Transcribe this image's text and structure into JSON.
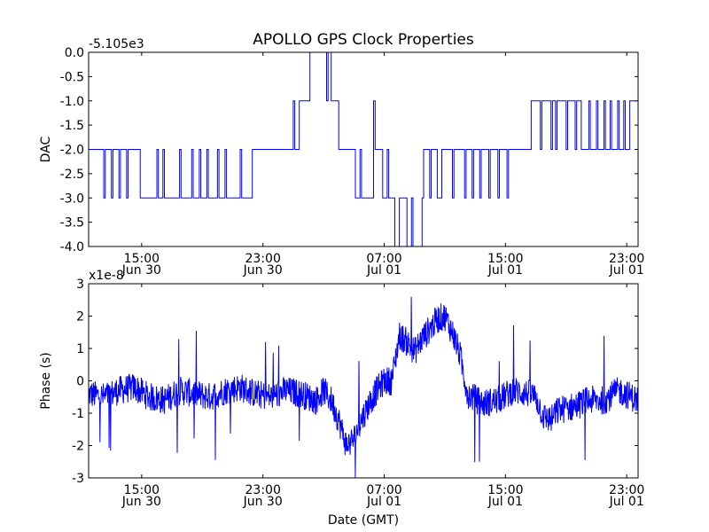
{
  "figure": {
    "title": "APOLLO GPS Clock Properties",
    "xlabel": "Date (GMT)"
  },
  "chart_data": [
    {
      "type": "line",
      "ylabel": "DAC",
      "offset_label": "-5.105e3",
      "ylim": [
        -4.0,
        0.0
      ],
      "yticks": [
        0.0,
        -0.5,
        -1.0,
        -1.5,
        -2.0,
        -2.5,
        -3.0,
        -3.5,
        -4.0
      ],
      "ytick_labels": [
        "0.0",
        "-0.5",
        "-1.0",
        "-1.5",
        "-2.0",
        "-2.5",
        "-3.0",
        "-3.5",
        "-4.0"
      ],
      "xlim_hours": [
        11.5,
        47.75
      ],
      "xticks": [
        {
          "hour": 15,
          "time": "15:00",
          "date": "Jun 30"
        },
        {
          "hour": 23,
          "time": "23:00",
          "date": "Jun 30"
        },
        {
          "hour": 31,
          "time": "07:00",
          "date": "Jul 01"
        },
        {
          "hour": 39,
          "time": "15:00",
          "date": "Jul 01"
        },
        {
          "hour": 47,
          "time": "23:00",
          "date": "Jul 01"
        }
      ],
      "series": [
        {
          "name": "DAC",
          "color": "#0000ff",
          "style": "step",
          "x": [
            11.5,
            12.5,
            12.6,
            13.0,
            13.1,
            13.5,
            13.6,
            14.0,
            14.1,
            14.8,
            14.9,
            16.0,
            16.1,
            16.4,
            16.5,
            17.5,
            17.6,
            18.3,
            18.4,
            18.8,
            18.9,
            19.3,
            19.4,
            20.0,
            20.1,
            20.5,
            20.6,
            21.5,
            21.6,
            22.3,
            22.4,
            25.0,
            25.1,
            25.3,
            25.4,
            26.0,
            26.1,
            27.2,
            27.3,
            27.5,
            27.6,
            27.9,
            28.0,
            28.1,
            28.2,
            29.0,
            29.1,
            29.4,
            29.5,
            30.3,
            30.4,
            30.8,
            30.9,
            31.2,
            31.3,
            31.6,
            31.7,
            32.0,
            32.1,
            32.3,
            32.5,
            32.8,
            32.9,
            33.1,
            33.2,
            33.5,
            33.6,
            34.0,
            34.1,
            34.5,
            34.8,
            35.5,
            35.6,
            36.3,
            36.4,
            36.8,
            36.9,
            37.3,
            37.4,
            37.9,
            38.0,
            38.5,
            38.6,
            39.1,
            39.2,
            39.8,
            39.9,
            40.6,
            40.7,
            41.3,
            41.4,
            42.0,
            42.1,
            42.3,
            42.4,
            42.6,
            42.7,
            43.0,
            43.1,
            43.6,
            43.7,
            43.9,
            44.0,
            44.5,
            44.6,
            45.0,
            45.1,
            45.5,
            45.6,
            45.9,
            46.0,
            46.4,
            46.5,
            46.8,
            46.9,
            47.2,
            47.3,
            47.75
          ],
          "values": [
            -2.0,
            -3.0,
            -2.0,
            -3.0,
            -2.0,
            -3.0,
            -2.0,
            -3.0,
            -2.0,
            -2.0,
            -3.0,
            -2.0,
            -3.0,
            -2.0,
            -3.0,
            -2.0,
            -3.0,
            -2.0,
            -3.0,
            -2.0,
            -3.0,
            -2.0,
            -3.0,
            -2.0,
            -3.0,
            -2.0,
            -3.0,
            -2.0,
            -3.0,
            -2.0,
            -2.0,
            -1.0,
            -2.0,
            -2.0,
            -1.0,
            -1.0,
            0.0,
            -1.0,
            0.0,
            -1.0,
            -1.0,
            -1.0,
            -2.0,
            -2.0,
            -2.0,
            -2.0,
            -3.0,
            -2.0,
            -3.0,
            -1.0,
            -2.0,
            -2.0,
            -3.0,
            -2.0,
            -3.0,
            -3.0,
            -4.0,
            -3.0,
            -3.0,
            -3.0,
            -4.0,
            -3.0,
            -4.0,
            -4.0,
            -4.0,
            -3.0,
            -2.0,
            -3.0,
            -2.0,
            -3.0,
            -2.0,
            -3.0,
            -2.0,
            -3.0,
            -2.0,
            -3.0,
            -2.0,
            -3.0,
            -2.0,
            -3.0,
            -2.0,
            -3.0,
            -2.0,
            -3.0,
            -2.0,
            -2.0,
            -2.0,
            -2.0,
            -1.0,
            -2.0,
            -1.0,
            -2.0,
            -1.0,
            -2.0,
            -1.0,
            -1.0,
            -1.0,
            -2.0,
            -1.0,
            -2.0,
            -1.0,
            -1.0,
            -2.0,
            -1.0,
            -2.0,
            -1.0,
            -2.0,
            -1.0,
            -2.0,
            -1.0,
            -2.0,
            -1.0,
            -2.0,
            -1.0,
            -2.0,
            -1.0,
            -1.0,
            -1.0
          ]
        }
      ]
    },
    {
      "type": "line",
      "ylabel": "Phase (s)",
      "offset_label": "x1e-8",
      "ylim": [
        -3,
        3
      ],
      "yticks": [
        -3,
        -2,
        -1,
        0,
        1,
        2,
        3
      ],
      "ytick_labels": [
        "-3",
        "-2",
        "-1",
        "0",
        "1",
        "2",
        "3"
      ],
      "xlim_hours": [
        11.5,
        47.75
      ],
      "xticks": [
        {
          "hour": 15,
          "time": "15:00",
          "date": "Jun 30"
        },
        {
          "hour": 23,
          "time": "23:00",
          "date": "Jun 30"
        },
        {
          "hour": 31,
          "time": "07:00",
          "date": "Jul 01"
        },
        {
          "hour": 39,
          "time": "15:00",
          "date": "Jul 01"
        },
        {
          "hour": 47,
          "time": "23:00",
          "date": "Jul 01"
        }
      ],
      "series": [
        {
          "name": "Phase",
          "color": "#0000ff",
          "style": "noisy-line",
          "x": [
            11.5,
            12.5,
            13.5,
            14.5,
            15.5,
            16.5,
            17.5,
            18.5,
            19.5,
            20.5,
            21.5,
            22.5,
            23.5,
            24.5,
            25.5,
            26.5,
            27.0,
            27.5,
            28.0,
            28.5,
            29.0,
            29.5,
            30.0,
            30.5,
            31.0,
            31.5,
            32.0,
            32.5,
            33.0,
            33.5,
            34.0,
            34.5,
            35.0,
            35.5,
            36.0,
            36.5,
            37.5,
            38.5,
            39.5,
            40.5,
            41.0,
            41.5,
            42.0,
            42.5,
            43.5,
            44.5,
            45.5,
            46.5,
            47.75
          ],
          "values": [
            -0.4,
            -0.5,
            -0.3,
            -0.2,
            -0.5,
            -0.6,
            -0.3,
            -0.4,
            -0.5,
            -0.3,
            -0.2,
            -0.4,
            -0.5,
            -0.3,
            -0.4,
            -0.6,
            -0.3,
            -0.6,
            -1.2,
            -2.0,
            -1.8,
            -1.2,
            -0.7,
            -0.3,
            0.0,
            0.0,
            1.4,
            1.2,
            0.9,
            1.3,
            1.6,
            1.9,
            2.0,
            1.5,
            0.8,
            -0.4,
            -0.7,
            -0.6,
            -0.3,
            -0.4,
            -0.5,
            -1.1,
            -1.2,
            -0.9,
            -0.8,
            -0.6,
            -0.6,
            -0.3,
            -0.6
          ],
          "noise_amplitude": 0.45
        }
      ]
    }
  ]
}
